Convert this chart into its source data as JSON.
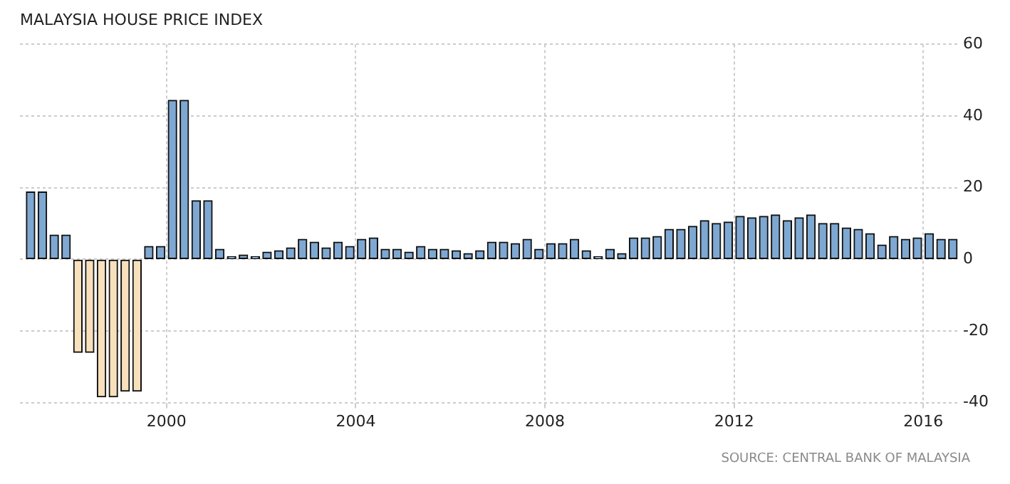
{
  "chart_data": {
    "type": "bar",
    "title": "MALAYSIA HOUSE PRICE INDEX",
    "annotations": [
      "SOURCE: CENTRAL BANK OF MALAYSIA"
    ],
    "x": [
      1997.125,
      1997.375,
      1997.625,
      1997.875,
      1998.125,
      1998.375,
      1998.625,
      1998.875,
      1999.125,
      1999.375,
      1999.625,
      1999.875,
      2000.125,
      2000.375,
      2000.625,
      2000.875,
      2001.125,
      2001.375,
      2001.625,
      2001.875,
      2002.125,
      2002.375,
      2002.625,
      2002.875,
      2003.125,
      2003.375,
      2003.625,
      2003.875,
      2004.125,
      2004.375,
      2004.625,
      2004.875,
      2005.125,
      2005.375,
      2005.625,
      2005.875,
      2006.125,
      2006.375,
      2006.625,
      2006.875,
      2007.125,
      2007.375,
      2007.625,
      2007.875,
      2008.125,
      2008.375,
      2008.625,
      2008.875,
      2009.125,
      2009.375,
      2009.625,
      2009.875,
      2010.125,
      2010.375,
      2010.625,
      2010.875,
      2011.125,
      2011.375,
      2011.625,
      2011.875,
      2012.125,
      2012.375,
      2012.625,
      2012.875,
      2013.125,
      2013.375,
      2013.625,
      2013.875,
      2014.125,
      2014.375,
      2014.625,
      2014.875,
      2015.125,
      2015.375,
      2015.625,
      2015.875,
      2016.125,
      2016.375,
      2016.625
    ],
    "values": [
      18.8,
      18.8,
      6.8,
      6.8,
      -26,
      -26,
      -38.4,
      -38.4,
      -36.8,
      -36.8,
      3.6,
      3.6,
      44.4,
      44.4,
      16.4,
      16.4,
      2.8,
      0.8,
      1.2,
      0.8,
      2,
      2.4,
      3.2,
      5.6,
      4.8,
      3.2,
      4.8,
      3.6,
      5.6,
      6,
      2.8,
      2.8,
      2,
      3.6,
      2.8,
      2.8,
      2.4,
      1.6,
      2.4,
      4.8,
      4.8,
      4.4,
      5.6,
      2.8,
      4.4,
      4.4,
      5.6,
      2.4,
      0.8,
      2.8,
      1.6,
      6,
      6,
      6.4,
      8.4,
      8.4,
      9.2,
      10.8,
      10,
      10.4,
      12,
      11.6,
      12,
      12.4,
      10.8,
      11.6,
      12.4,
      10,
      10,
      8.8,
      8.4,
      7.2,
      4,
      6.4,
      5.6,
      6,
      7.2,
      5.6,
      5.6
    ],
    "colors": [
      "#7ea8d2",
      "#7ea8d2",
      "#7ea8d2",
      "#7ea8d2",
      "#f7e0bb",
      "#f7e0bb",
      "#f7e0bb",
      "#f7e0bb",
      "#f7e0bb",
      "#f7e0bb",
      "#7ea8d2",
      "#7ea8d2",
      "#7ea8d2",
      "#7ea8d2",
      "#7ea8d2",
      "#7ea8d2",
      "#7ea8d2",
      "#7ea8d2",
      "#7ea8d2",
      "#7ea8d2",
      "#7ea8d2",
      "#7ea8d2",
      "#7ea8d2",
      "#7ea8d2",
      "#7ea8d2",
      "#7ea8d2",
      "#7ea8d2",
      "#7ea8d2",
      "#7ea8d2",
      "#7ea8d2",
      "#7ea8d2",
      "#7ea8d2",
      "#7ea8d2",
      "#7ea8d2",
      "#7ea8d2",
      "#7ea8d2",
      "#7ea8d2",
      "#7ea8d2",
      "#7ea8d2",
      "#7ea8d2",
      "#7ea8d2",
      "#7ea8d2",
      "#7ea8d2",
      "#7ea8d2",
      "#7ea8d2",
      "#7ea8d2",
      "#7ea8d2",
      "#7ea8d2",
      "#7ea8d2",
      "#7ea8d2",
      "#7ea8d2",
      "#7ea8d2",
      "#7ea8d2",
      "#7ea8d2",
      "#7ea8d2",
      "#7ea8d2",
      "#7ea8d2",
      "#7ea8d2",
      "#7ea8d2",
      "#7ea8d2",
      "#7ea8d2",
      "#7ea8d2",
      "#7ea8d2",
      "#7ea8d2",
      "#7ea8d2",
      "#7ea8d2",
      "#7ea8d2",
      "#7ea8d2",
      "#7ea8d2",
      "#7ea8d2",
      "#7ea8d2",
      "#7ea8d2",
      "#7ea8d2",
      "#7ea8d2",
      "#7ea8d2",
      "#7ea8d2",
      "#7ea8d2",
      "#7ea8d2",
      "#7ea8d2"
    ],
    "xlim": [
      1996.9,
      2016.75
    ],
    "xticks": [
      2000,
      2004,
      2008,
      2012,
      2016
    ],
    "ylim": [
      -40,
      60
    ],
    "yticks": [
      -40,
      -20,
      0,
      20,
      40,
      60
    ],
    "grid": true,
    "legend": false
  }
}
